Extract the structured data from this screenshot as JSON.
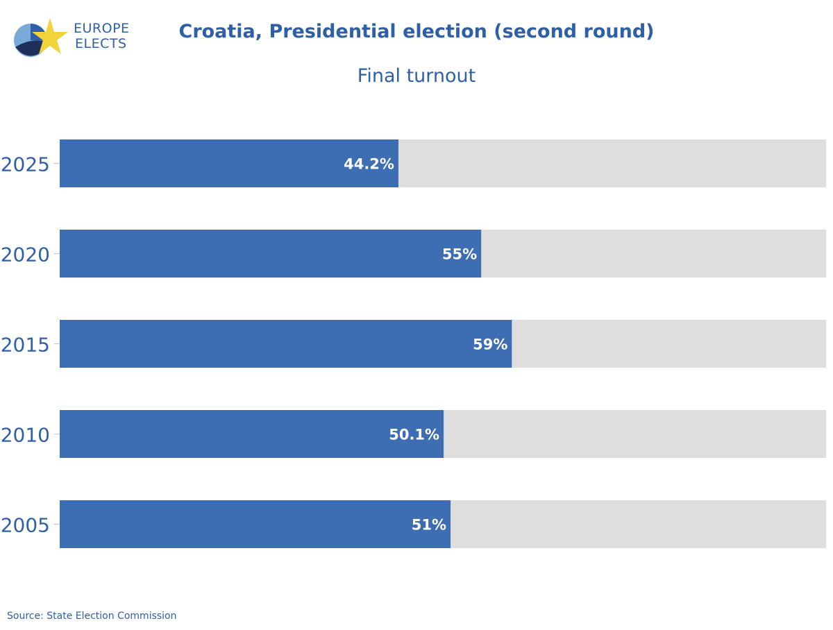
{
  "brand": {
    "line1": "EUROPE",
    "line2": "ELECTS",
    "colors": {
      "blue": "#2f5fa6",
      "light_blue": "#7aa9d8",
      "navy": "#1e2f5c",
      "star": "#f2d43a"
    }
  },
  "chart_data": {
    "type": "bar",
    "orientation": "horizontal",
    "title": "Croatia, Presidential election (second round)",
    "subtitle": "Final turnout",
    "categories": [
      "2025",
      "2020",
      "2015",
      "2010",
      "2005"
    ],
    "values": [
      44.2,
      55,
      59,
      50.1,
      51
    ],
    "value_labels": [
      "44.2%",
      "55%",
      "59%",
      "50.1%",
      "51%"
    ],
    "xlim": [
      0,
      100
    ],
    "bar_color": "#3d6db2",
    "track_color": "#dedede",
    "grid": false,
    "legend": "none"
  },
  "source": "Source: State Election Commission"
}
